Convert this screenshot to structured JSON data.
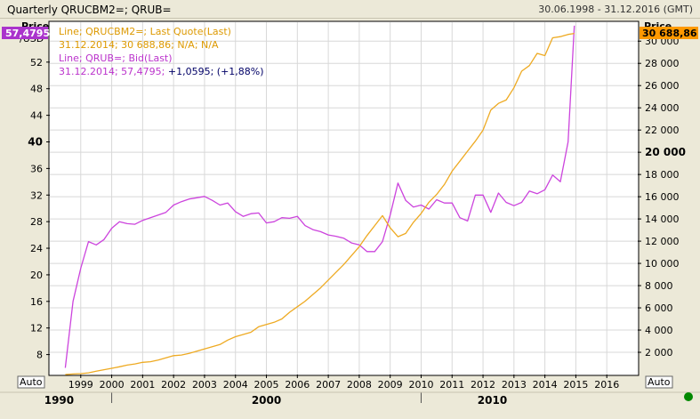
{
  "window": {
    "title": "Quarterly QRUCBM2=; QRUB=",
    "date_range": "30.06.1998 - 31.12.2016 (GMT)"
  },
  "axes": {
    "left_unit_top": "Price",
    "left_unit_bottom": "/USD",
    "right_unit_top": "Price",
    "left_last_value": "57,4795",
    "right_last_value": "30 688,86",
    "auto_left": "Auto",
    "auto_right": "Auto"
  },
  "legend": {
    "line1_title": "Line; QRUCBM2=; Last Quote(Last)",
    "line1_values": "31.12.2014; 30 688,86; N/A; N/A",
    "line2_title": "Line; QRUB=; Bid(Last)",
    "line2_values_a": "31.12.2014; 57,4795; ",
    "line2_values_b": "+1,0595; (+1,88%)"
  },
  "colors": {
    "ruble": "#cc44dd",
    "m2": "#eeaa22",
    "left_badge": "#aa33cc",
    "right_badge": "#ff9900",
    "status": "#008800",
    "grid": "#d8d8d8"
  },
  "status_icon": "green-circle-icon",
  "chart_data": {
    "type": "line",
    "x_years": [
      "1999",
      "2000",
      "2001",
      "2002",
      "2003",
      "2004",
      "2005",
      "2006",
      "2007",
      "2008",
      "2009",
      "2010",
      "2011",
      "2012",
      "2013",
      "2014",
      "2015",
      "2016"
    ],
    "decades": [
      "1990",
      "2000",
      "2010"
    ],
    "left_ticks": [
      8,
      12,
      16,
      20,
      24,
      28,
      32,
      36,
      40,
      44,
      48,
      52
    ],
    "left_bold_ticks": [
      40
    ],
    "left_ylim": [
      5,
      58
    ],
    "right_ticks": [
      2000,
      4000,
      6000,
      8000,
      10000,
      12000,
      14000,
      16000,
      18000,
      20000,
      22000,
      24000,
      26000,
      28000,
      30000
    ],
    "right_tick_labels": [
      "2 000",
      "4 000",
      "6 000",
      "8 000",
      "10 000",
      "12 000",
      "14 000",
      "16 000",
      "18 000",
      "20 000",
      "22 000",
      "24 000",
      "26 000",
      "28 000",
      "30 000"
    ],
    "right_bold_ticks": [
      20000
    ],
    "right_ylim": [
      0,
      31700
    ],
    "xlim": [
      1998.0,
      2017.0
    ],
    "series": [
      {
        "name": "QRUB=",
        "axis": "left",
        "points": [
          [
            1998.5,
            6.0
          ],
          [
            1998.75,
            16.0
          ],
          [
            1999.0,
            21.0
          ],
          [
            1999.25,
            25.0
          ],
          [
            1999.5,
            24.5
          ],
          [
            1999.75,
            25.3
          ],
          [
            2000.0,
            27.0
          ],
          [
            2000.25,
            28.0
          ],
          [
            2000.5,
            27.7
          ],
          [
            2000.75,
            27.6
          ],
          [
            2001.0,
            28.2
          ],
          [
            2001.25,
            28.6
          ],
          [
            2001.5,
            29.0
          ],
          [
            2001.75,
            29.4
          ],
          [
            2002.0,
            30.5
          ],
          [
            2002.25,
            31.0
          ],
          [
            2002.5,
            31.4
          ],
          [
            2002.75,
            31.6
          ],
          [
            2003.0,
            31.8
          ],
          [
            2003.25,
            31.2
          ],
          [
            2003.5,
            30.5
          ],
          [
            2003.75,
            30.8
          ],
          [
            2004.0,
            29.5
          ],
          [
            2004.25,
            28.8
          ],
          [
            2004.5,
            29.2
          ],
          [
            2004.75,
            29.3
          ],
          [
            2005.0,
            27.8
          ],
          [
            2005.25,
            28.0
          ],
          [
            2005.5,
            28.6
          ],
          [
            2005.75,
            28.5
          ],
          [
            2006.0,
            28.8
          ],
          [
            2006.25,
            27.4
          ],
          [
            2006.5,
            26.8
          ],
          [
            2006.75,
            26.5
          ],
          [
            2007.0,
            26.0
          ],
          [
            2007.25,
            25.8
          ],
          [
            2007.5,
            25.5
          ],
          [
            2007.75,
            24.8
          ],
          [
            2008.0,
            24.5
          ],
          [
            2008.25,
            23.5
          ],
          [
            2008.5,
            23.5
          ],
          [
            2008.75,
            25.0
          ],
          [
            2009.0,
            29.0
          ],
          [
            2009.25,
            33.8
          ],
          [
            2009.5,
            31.2
          ],
          [
            2009.75,
            30.2
          ],
          [
            2010.0,
            30.5
          ],
          [
            2010.25,
            29.9
          ],
          [
            2010.5,
            31.3
          ],
          [
            2010.75,
            30.8
          ],
          [
            2011.0,
            30.8
          ],
          [
            2011.25,
            28.6
          ],
          [
            2011.5,
            28.1
          ],
          [
            2011.75,
            32.0
          ],
          [
            2012.0,
            32.0
          ],
          [
            2012.25,
            29.4
          ],
          [
            2012.5,
            32.3
          ],
          [
            2012.75,
            30.9
          ],
          [
            2013.0,
            30.4
          ],
          [
            2013.25,
            30.9
          ],
          [
            2013.5,
            32.6
          ],
          [
            2013.75,
            32.2
          ],
          [
            2014.0,
            32.8
          ],
          [
            2014.25,
            35.0
          ],
          [
            2014.5,
            34.0
          ],
          [
            2014.75,
            40.0
          ],
          [
            2014.95,
            57.4795
          ]
        ]
      },
      {
        "name": "QRUCBM2=",
        "axis": "right",
        "points": [
          [
            1998.5,
            0
          ],
          [
            1998.75,
            50
          ],
          [
            1999.0,
            80
          ],
          [
            1999.25,
            150
          ],
          [
            1999.5,
            300
          ],
          [
            1999.75,
            430
          ],
          [
            2000.0,
            560
          ],
          [
            2000.25,
            700
          ],
          [
            2000.5,
            850
          ],
          [
            2000.75,
            950
          ],
          [
            2001.0,
            1100
          ],
          [
            2001.25,
            1150
          ],
          [
            2001.5,
            1300
          ],
          [
            2001.75,
            1500
          ],
          [
            2002.0,
            1700
          ],
          [
            2002.25,
            1750
          ],
          [
            2002.5,
            1900
          ],
          [
            2002.75,
            2100
          ],
          [
            2003.0,
            2300
          ],
          [
            2003.25,
            2500
          ],
          [
            2003.5,
            2700
          ],
          [
            2003.75,
            3100
          ],
          [
            2004.0,
            3400
          ],
          [
            2004.25,
            3600
          ],
          [
            2004.5,
            3800
          ],
          [
            2004.75,
            4300
          ],
          [
            2005.0,
            4500
          ],
          [
            2005.25,
            4700
          ],
          [
            2005.5,
            5000
          ],
          [
            2005.75,
            5600
          ],
          [
            2006.0,
            6100
          ],
          [
            2006.25,
            6600
          ],
          [
            2006.5,
            7200
          ],
          [
            2006.75,
            7800
          ],
          [
            2007.0,
            8500
          ],
          [
            2007.25,
            9200
          ],
          [
            2007.5,
            9900
          ],
          [
            2007.75,
            10700
          ],
          [
            2008.0,
            11500
          ],
          [
            2008.25,
            12500
          ],
          [
            2008.5,
            13400
          ],
          [
            2008.75,
            14300
          ],
          [
            2009.0,
            13200
          ],
          [
            2009.25,
            12400
          ],
          [
            2009.5,
            12700
          ],
          [
            2009.75,
            13700
          ],
          [
            2010.0,
            14500
          ],
          [
            2010.25,
            15500
          ],
          [
            2010.5,
            16200
          ],
          [
            2010.75,
            17100
          ],
          [
            2011.0,
            18300
          ],
          [
            2011.25,
            19200
          ],
          [
            2011.5,
            20100
          ],
          [
            2011.75,
            21000
          ],
          [
            2012.0,
            22000
          ],
          [
            2012.25,
            23800
          ],
          [
            2012.5,
            24400
          ],
          [
            2012.75,
            24700
          ],
          [
            2013.0,
            25800
          ],
          [
            2013.25,
            27300
          ],
          [
            2013.5,
            27800
          ],
          [
            2013.75,
            28900
          ],
          [
            2014.0,
            28700
          ],
          [
            2014.25,
            30300
          ],
          [
            2014.5,
            30400
          ],
          [
            2014.75,
            30600
          ],
          [
            2014.95,
            30688.86
          ]
        ]
      }
    ]
  }
}
